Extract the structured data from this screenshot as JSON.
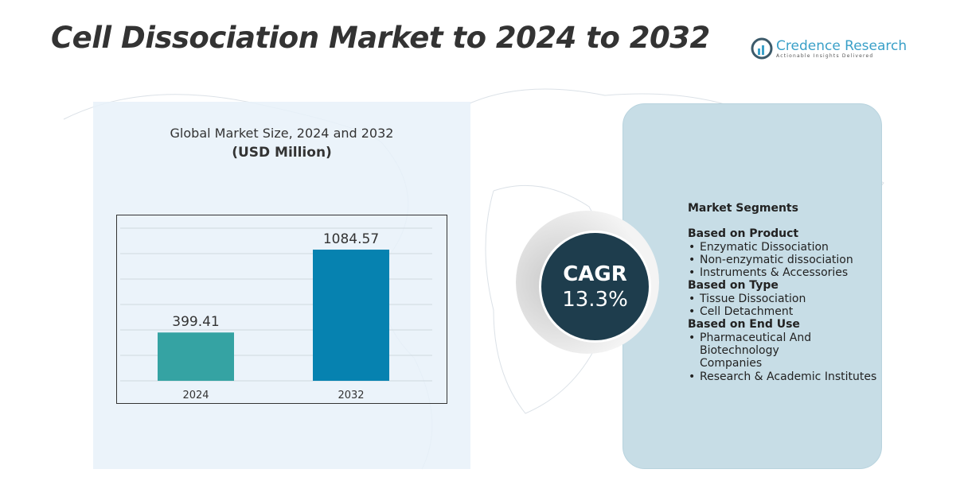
{
  "title": "Cell Dissociation Market to 2024 to 2032",
  "logo": {
    "name": "Credence Research",
    "tagline": "Actionable Insights Delivered"
  },
  "chart_data": {
    "type": "bar",
    "title": "Global Market Size, 2024 and 2032",
    "subtitle": "(USD Million)",
    "categories": [
      "2024",
      "2032"
    ],
    "values": [
      399.41,
      1084.57
    ],
    "value_labels": [
      "399.41",
      "1084.57"
    ],
    "colors": [
      "#35a3a3",
      "#0682b0"
    ],
    "grid": true
  },
  "cagr": {
    "label": "CAGR",
    "value": "13.3%"
  },
  "segments": {
    "heading": "Market Segments",
    "groups": [
      {
        "title": "Based on Product",
        "items": [
          "Enzymatic Dissociation",
          "Non-enzymatic dissociation",
          "Instruments & Accessories"
        ]
      },
      {
        "title": "Based on Type",
        "items": [
          "Tissue Dissociation",
          "Cell Detachment"
        ]
      },
      {
        "title": "Based on End Use",
        "items": [
          "Pharmaceutical And Biotechnology Companies",
          "Research & Academic Institutes"
        ]
      }
    ]
  }
}
